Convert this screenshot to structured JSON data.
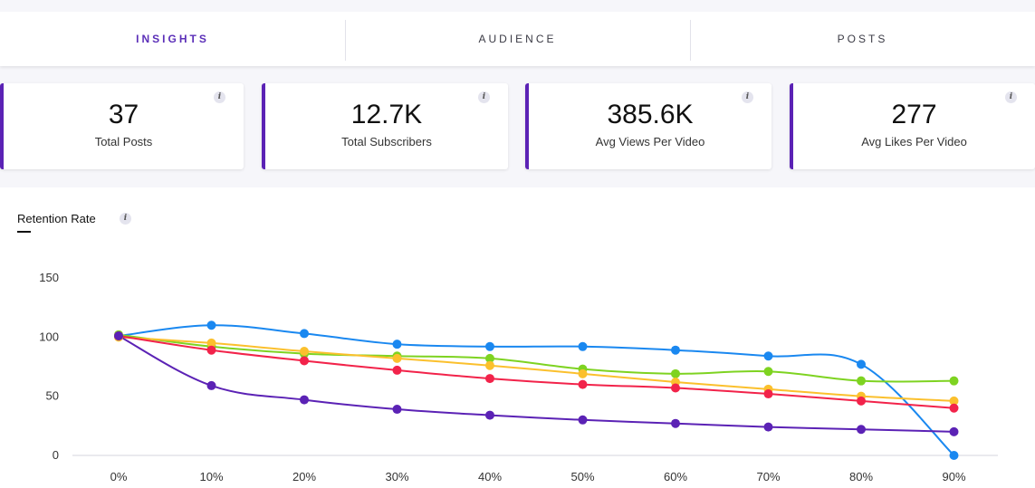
{
  "tabs": [
    {
      "label": "INSIGHTS",
      "active": true
    },
    {
      "label": "AUDIENCE",
      "active": false
    },
    {
      "label": "POSTS",
      "active": false
    }
  ],
  "stats": [
    {
      "value": "37",
      "label": "Total Posts",
      "info": "i"
    },
    {
      "value": "12.7K",
      "label": "Total Subscribers",
      "info": "i"
    },
    {
      "value": "385.6K",
      "label": "Avg Views Per Video",
      "info": "i"
    },
    {
      "value": "277",
      "label": "Avg Likes Per Video",
      "info": "i"
    }
  ],
  "retention": {
    "title": "Retention Rate",
    "info": "i"
  },
  "colors": {
    "accent": "#5b22b5",
    "tab_active": "#5b2fb8"
  },
  "chart_data": {
    "type": "line",
    "title": "Retention Rate",
    "xlabel": "",
    "ylabel": "",
    "x": [
      "0%",
      "10%",
      "20%",
      "30%",
      "40%",
      "50%",
      "60%",
      "70%",
      "80%",
      "90%"
    ],
    "yticks": [
      "0",
      "50",
      "100",
      "150"
    ],
    "ylim": [
      0,
      150
    ],
    "grid": false,
    "series": [
      {
        "name": "blue",
        "color": "#1a88f0",
        "values": [
          101,
          110,
          103,
          94,
          92,
          92,
          89,
          84,
          77,
          0
        ]
      },
      {
        "name": "green",
        "color": "#7ed321",
        "values": [
          102,
          92,
          86,
          84,
          82,
          73,
          69,
          71,
          63,
          63
        ]
      },
      {
        "name": "yellow",
        "color": "#fbc02d",
        "values": [
          100,
          95,
          88,
          82,
          76,
          69,
          62,
          56,
          50,
          46
        ]
      },
      {
        "name": "red",
        "color": "#f2234a",
        "values": [
          101,
          89,
          80,
          72,
          65,
          60,
          57,
          52,
          46,
          40
        ]
      },
      {
        "name": "purple",
        "color": "#5b22b5",
        "values": [
          101,
          59,
          47,
          39,
          34,
          30,
          27,
          24,
          22,
          20
        ]
      }
    ]
  }
}
